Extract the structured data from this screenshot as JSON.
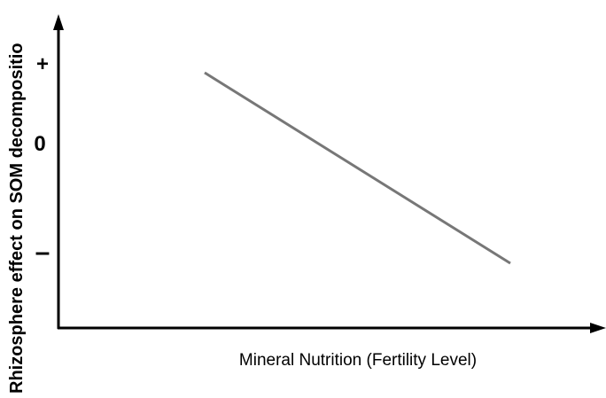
{
  "axes": {
    "y_label": "Rhizosphere effect on SOM decompositio",
    "x_label": "Mineral Nutrition (Fertility Level)",
    "y_marks": [
      "+",
      "0",
      "–"
    ]
  }
}
